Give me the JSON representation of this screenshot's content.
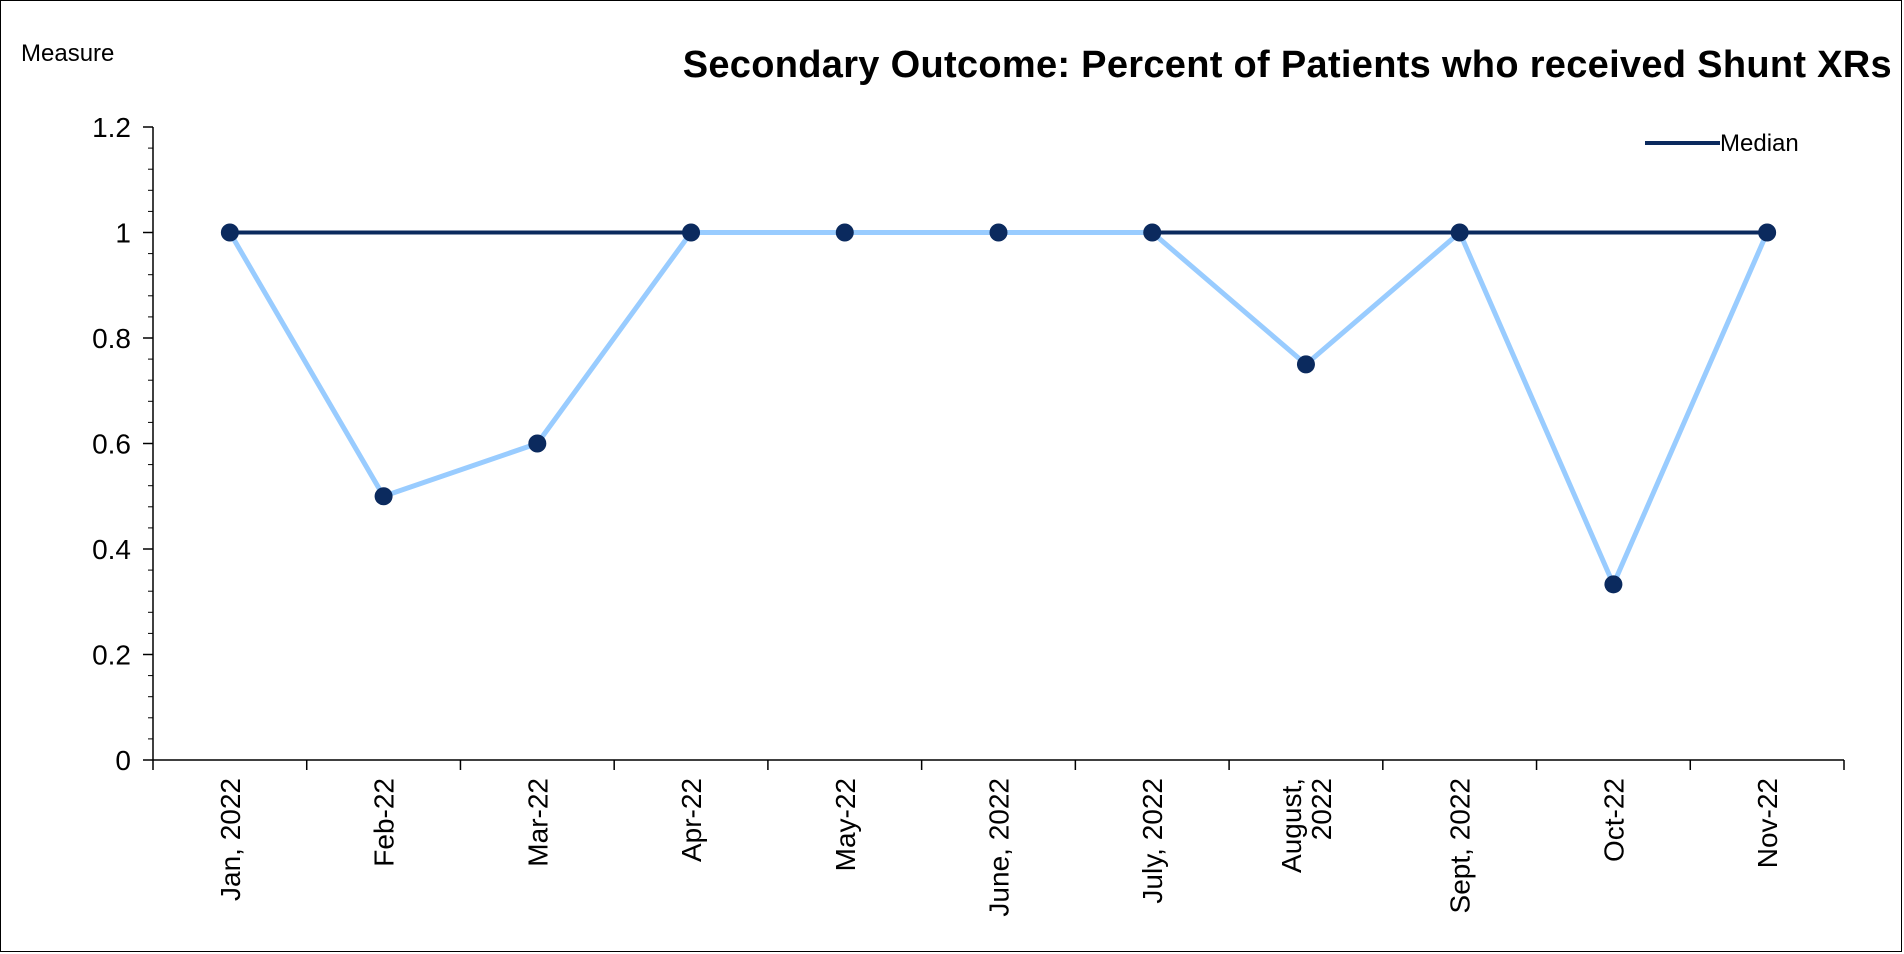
{
  "chart_data": {
    "type": "line",
    "title": "Secondary Outcome: Percent of Patients who received Shunt XRs",
    "ylabel": "Measure",
    "xlabel": "",
    "ylim": [
      0,
      1.2
    ],
    "yticks": [
      "0",
      "0.2",
      "0.4",
      "0.6",
      "0.8",
      "1",
      "1.2"
    ],
    "categories": [
      [
        "Jan, 2022"
      ],
      [
        "Feb-22"
      ],
      [
        "Mar-22"
      ],
      [
        "Apr-22"
      ],
      [
        "May-22"
      ],
      [
        "June, 2022"
      ],
      [
        "July, 2022"
      ],
      [
        "August,",
        "2022"
      ],
      [
        "Sept, 2022"
      ],
      [
        "Oct-22"
      ],
      [
        "Nov-22"
      ]
    ],
    "series": [
      {
        "values": [
          1,
          0.5,
          0.6,
          1,
          1,
          1,
          1,
          0.75,
          1,
          0.333,
          1
        ],
        "color": "#99ccff",
        "marker_color": "#0b2a5e"
      },
      {
        "name": "Median",
        "values": [
          1,
          1,
          1,
          1,
          1,
          1,
          1,
          1,
          1,
          1,
          1
        ],
        "color": "#0b2a5e"
      }
    ],
    "legend": {
      "position": "top-right",
      "entries": [
        "Median"
      ]
    },
    "grid": false
  }
}
